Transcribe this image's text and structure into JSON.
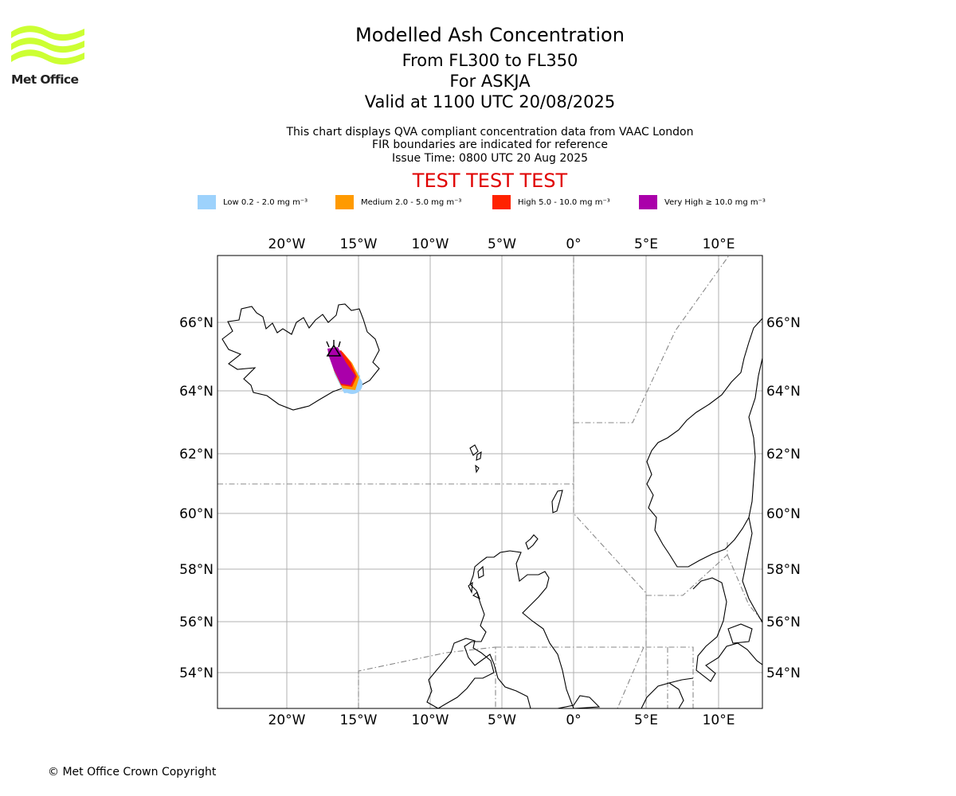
{
  "logo": {
    "name": "Met Office",
    "wave_color": "#ccff33"
  },
  "header": {
    "title": "Modelled Ash Concentration",
    "level_range": "From FL300 to FL350",
    "volcano": "For ASKJA",
    "valid_time": "Valid at 1100 UTC 20/08/2025",
    "description_line1": "This chart displays QVA compliant concentration data from VAAC London",
    "description_line2": "FIR boundaries are indicated for reference",
    "issue_time": "Issue Time: 0800 UTC 20 Aug 2025",
    "test_banner": "TEST TEST TEST"
  },
  "legend": [
    {
      "label": "Low 0.2 - 2.0 mg m⁻³",
      "color": "#9dd2fc"
    },
    {
      "label": "Medium 2.0 - 5.0 mg m⁻³",
      "color": "#ff9a00"
    },
    {
      "label": "High 5.0 - 10.0 mg m⁻³",
      "color": "#ff2200"
    },
    {
      "label": "Very High ≥ 10.0 mg m⁻³",
      "color": "#aa00aa"
    }
  ],
  "map": {
    "longitude_ticks": [
      "20°W",
      "15°W",
      "10°W",
      "5°W",
      "0°",
      "5°E",
      "10°E"
    ],
    "latitude_ticks": [
      "66°N",
      "64°N",
      "62°N",
      "60°N",
      "58°N",
      "56°N",
      "54°N"
    ],
    "gridline_color": "#b0b0b0",
    "fir_boundary_color": "#888888",
    "coastline_color": "#000000",
    "volcano_marker": "black triangle"
  },
  "footer": {
    "copyright": "© Met Office Crown Copyright"
  }
}
